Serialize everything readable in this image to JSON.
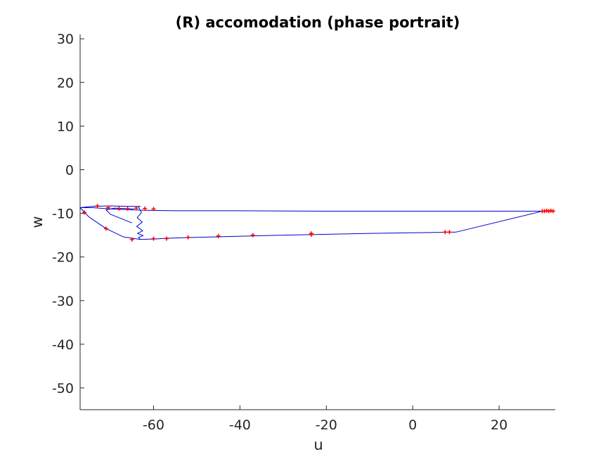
{
  "chart_data": {
    "type": "line",
    "title": "(R) accomodation (phase portrait)",
    "xlabel": "u",
    "ylabel": "w",
    "xlim": [
      -77,
      33
    ],
    "ylim": [
      -55,
      31
    ],
    "xticks": [
      -60,
      -40,
      -20,
      0,
      20
    ],
    "xtick_labels": [
      "-60",
      "-40",
      "-20",
      "0",
      "20"
    ],
    "yticks": [
      30,
      20,
      10,
      0,
      -10,
      -20,
      -30,
      -40,
      -50
    ],
    "ytick_labels": [
      "30",
      "20",
      "10",
      "0",
      "-10",
      "-20",
      "-30",
      "-40",
      "-50"
    ],
    "grid": false,
    "legend": "none",
    "colors": {
      "trajectory": "#0000cc",
      "markers": "#ff0000",
      "axes": "#262626"
    },
    "series": [
      {
        "style": "line",
        "color": "#0000cc",
        "x": [
          30,
          10,
          -20,
          -40,
          -55,
          -62,
          -65,
          -70,
          -74,
          -77,
          -75,
          -71,
          -67,
          -63,
          -61,
          -60,
          -57,
          -50,
          -30,
          -10,
          10,
          30
        ],
        "y": [
          -9.5,
          -9.5,
          -9.5,
          -9.4,
          -9.4,
          -9.3,
          -9.2,
          -9.0,
          -8.7,
          -8.7,
          -10.8,
          -13.5,
          -15.4,
          -16.0,
          -15.9,
          -15.9,
          -15.7,
          -15.5,
          -15.0,
          -14.6,
          -14.3,
          -9.5
        ]
      },
      {
        "style": "line",
        "color": "#0000cc",
        "x": [
          -77,
          -74,
          -70,
          -66,
          -63
        ],
        "y": [
          -8.7,
          -8.4,
          -8.3,
          -8.4,
          -8.4
        ]
      },
      {
        "style": "line",
        "color": "#0000cc",
        "x": [
          -63.5,
          -62.8,
          -63.8,
          -62.6,
          -63.9,
          -62.5,
          -63.7,
          -62.4,
          -63.5,
          -63.0
        ],
        "y": [
          -8.5,
          -9.8,
          -11.0,
          -12.0,
          -13.0,
          -14.0,
          -14.6,
          -15.1,
          -15.5,
          -16.0
        ]
      },
      {
        "style": "line",
        "color": "#0000cc",
        "x": [
          -64.5,
          -66.5,
          -69,
          -71,
          -70,
          -67,
          -65
        ],
        "y": [
          -9.0,
          -8.9,
          -8.8,
          -9.2,
          -10.2,
          -11.4,
          -12.2
        ]
      },
      {
        "style": "markers",
        "color": "#ff0000",
        "x": [
          -76,
          -73,
          -70.5,
          -68,
          -66,
          -64,
          -62,
          -60,
          -71,
          -65,
          -60,
          -57,
          -52,
          -45,
          -37,
          -23.5,
          -23.5,
          7.5,
          8.5,
          30,
          30.5,
          31,
          31.5,
          32,
          32.5
        ],
        "y": [
          -9.8,
          -8.3,
          -8.7,
          -8.9,
          -8.9,
          -8.8,
          -8.9,
          -9.0,
          -13.5,
          -16.0,
          -15.8,
          -15.8,
          -15.5,
          -15.2,
          -15.0,
          -14.6,
          -14.9,
          -14.3,
          -14.3,
          -9.5,
          -9.5,
          -9.4,
          -9.5,
          -9.4,
          -9.5
        ]
      }
    ]
  }
}
